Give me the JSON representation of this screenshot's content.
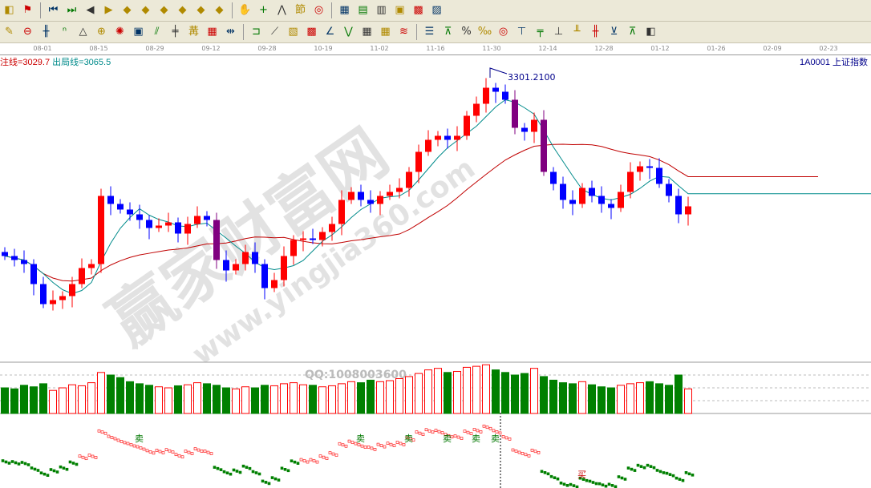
{
  "toolbar1": [
    "kline-icon",
    "color-flag-icon",
    "first-icon",
    "last-icon",
    "left-icon",
    "right-icon",
    "shift-left-icon",
    "shift-right-icon",
    "expand-icon",
    "shrink-icon",
    "zoom-in-icon",
    "zoom-out-icon",
    "hand-icon",
    "crosshair-icon",
    "draw-line-icon",
    "section-icon",
    "formula-icon",
    "calendar-icon",
    "calculator-icon",
    "notes-icon",
    "save-icon",
    "export-icon",
    "print-icon"
  ],
  "toolbar2": [
    "pen-icon",
    "circle-icon",
    "grid-lines-icon",
    "n2-icon",
    "triangle-icon",
    "target-icon",
    "star-icon",
    "box-icon",
    "parallel-icon",
    "fan-icon",
    "gann-icon",
    "range-icon",
    "measure-icon",
    "rect-icon",
    "fan-lines-icon",
    "gann-box-icon",
    "gann-fan-icon",
    "angle-icon",
    "wave-icon",
    "grid-icon",
    "table-icon",
    "channel-icon",
    "list-icon",
    "trend-icon",
    "percent-icon",
    "percent-line-icon",
    "coin-icon",
    "text-icon",
    "pivot-icon",
    "cycle-icon",
    "arrows-icon",
    "flag-icon",
    "stack-icon",
    "bar-up-icon",
    "bar-down-icon"
  ],
  "axis_dates": [
    "08-01",
    "08-15",
    "08-29",
    "09-12",
    "09-28",
    "10-19",
    "11-02",
    "11-16",
    "11-30",
    "12-14",
    "12-28",
    "01-12",
    "01-26",
    "02-09",
    "02-23"
  ],
  "legend": {
    "enter": "注线=3029.7",
    "exit": "出局线=3065.5"
  },
  "symbol": "1A0001  上证指数",
  "peak_label": "3301.2100",
  "watermark": {
    "text": "赢家财富网",
    "url": "www.yingjia360.com",
    "qq": "QQ:1008003600"
  },
  "signals": [
    {
      "i": 14,
      "t": "卖"
    },
    {
      "i": 37,
      "t": "卖"
    },
    {
      "i": 42,
      "t": "卖"
    },
    {
      "i": 46,
      "t": "卖"
    },
    {
      "i": 49,
      "t": "卖"
    },
    {
      "i": 51,
      "t": "卖"
    },
    {
      "i": 60,
      "t": "买"
    }
  ],
  "colors": {
    "up": "#ff0000",
    "down": "#0000ff",
    "turn": "#800080",
    "ma_fast": "#008b8b",
    "ma_slow": "#c00000",
    "vol_down": "#008000"
  },
  "chart_data": {
    "type": "candlestick",
    "ylim": [
      2590,
      3320
    ],
    "peak": 3301.21,
    "close": [
      2851,
      2841,
      2831,
      2781,
      2731,
      2741,
      2751,
      2781,
      2821,
      2831,
      3001,
      2981,
      2967,
      2955,
      2941,
      2921,
      2927,
      2935,
      2907,
      2931,
      2951,
      2941,
      2841,
      2815,
      2831,
      2861,
      2831,
      2771,
      2791,
      2851,
      2891,
      2895,
      2891,
      2911,
      2931,
      2991,
      3011,
      2991,
      2981,
      3001,
      3011,
      3021,
      3061,
      3111,
      3141,
      3151,
      3141,
      3151,
      3201,
      3231,
      3271,
      3261,
      3241,
      3171,
      3161,
      3191,
      3061,
      3031,
      2991,
      2981,
      3021,
      3001,
      2981,
      2971,
      3011,
      3061,
      3075,
      3071,
      3031,
      3001,
      2955,
      2975
    ],
    "volume": [
      50,
      48,
      55,
      52,
      58,
      45,
      50,
      56,
      54,
      60,
      80,
      75,
      70,
      62,
      58,
      55,
      52,
      50,
      54,
      56,
      60,
      58,
      55,
      50,
      48,
      52,
      50,
      55,
      54,
      58,
      60,
      56,
      55,
      52,
      54,
      58,
      62,
      60,
      65,
      62,
      64,
      68,
      72,
      78,
      85,
      88,
      80,
      82,
      90,
      92,
      95,
      85,
      80,
      75,
      78,
      88,
      72,
      65,
      60,
      58,
      62,
      56,
      52,
      50,
      55,
      58,
      60,
      62,
      58,
      55,
      75,
      48
    ]
  }
}
